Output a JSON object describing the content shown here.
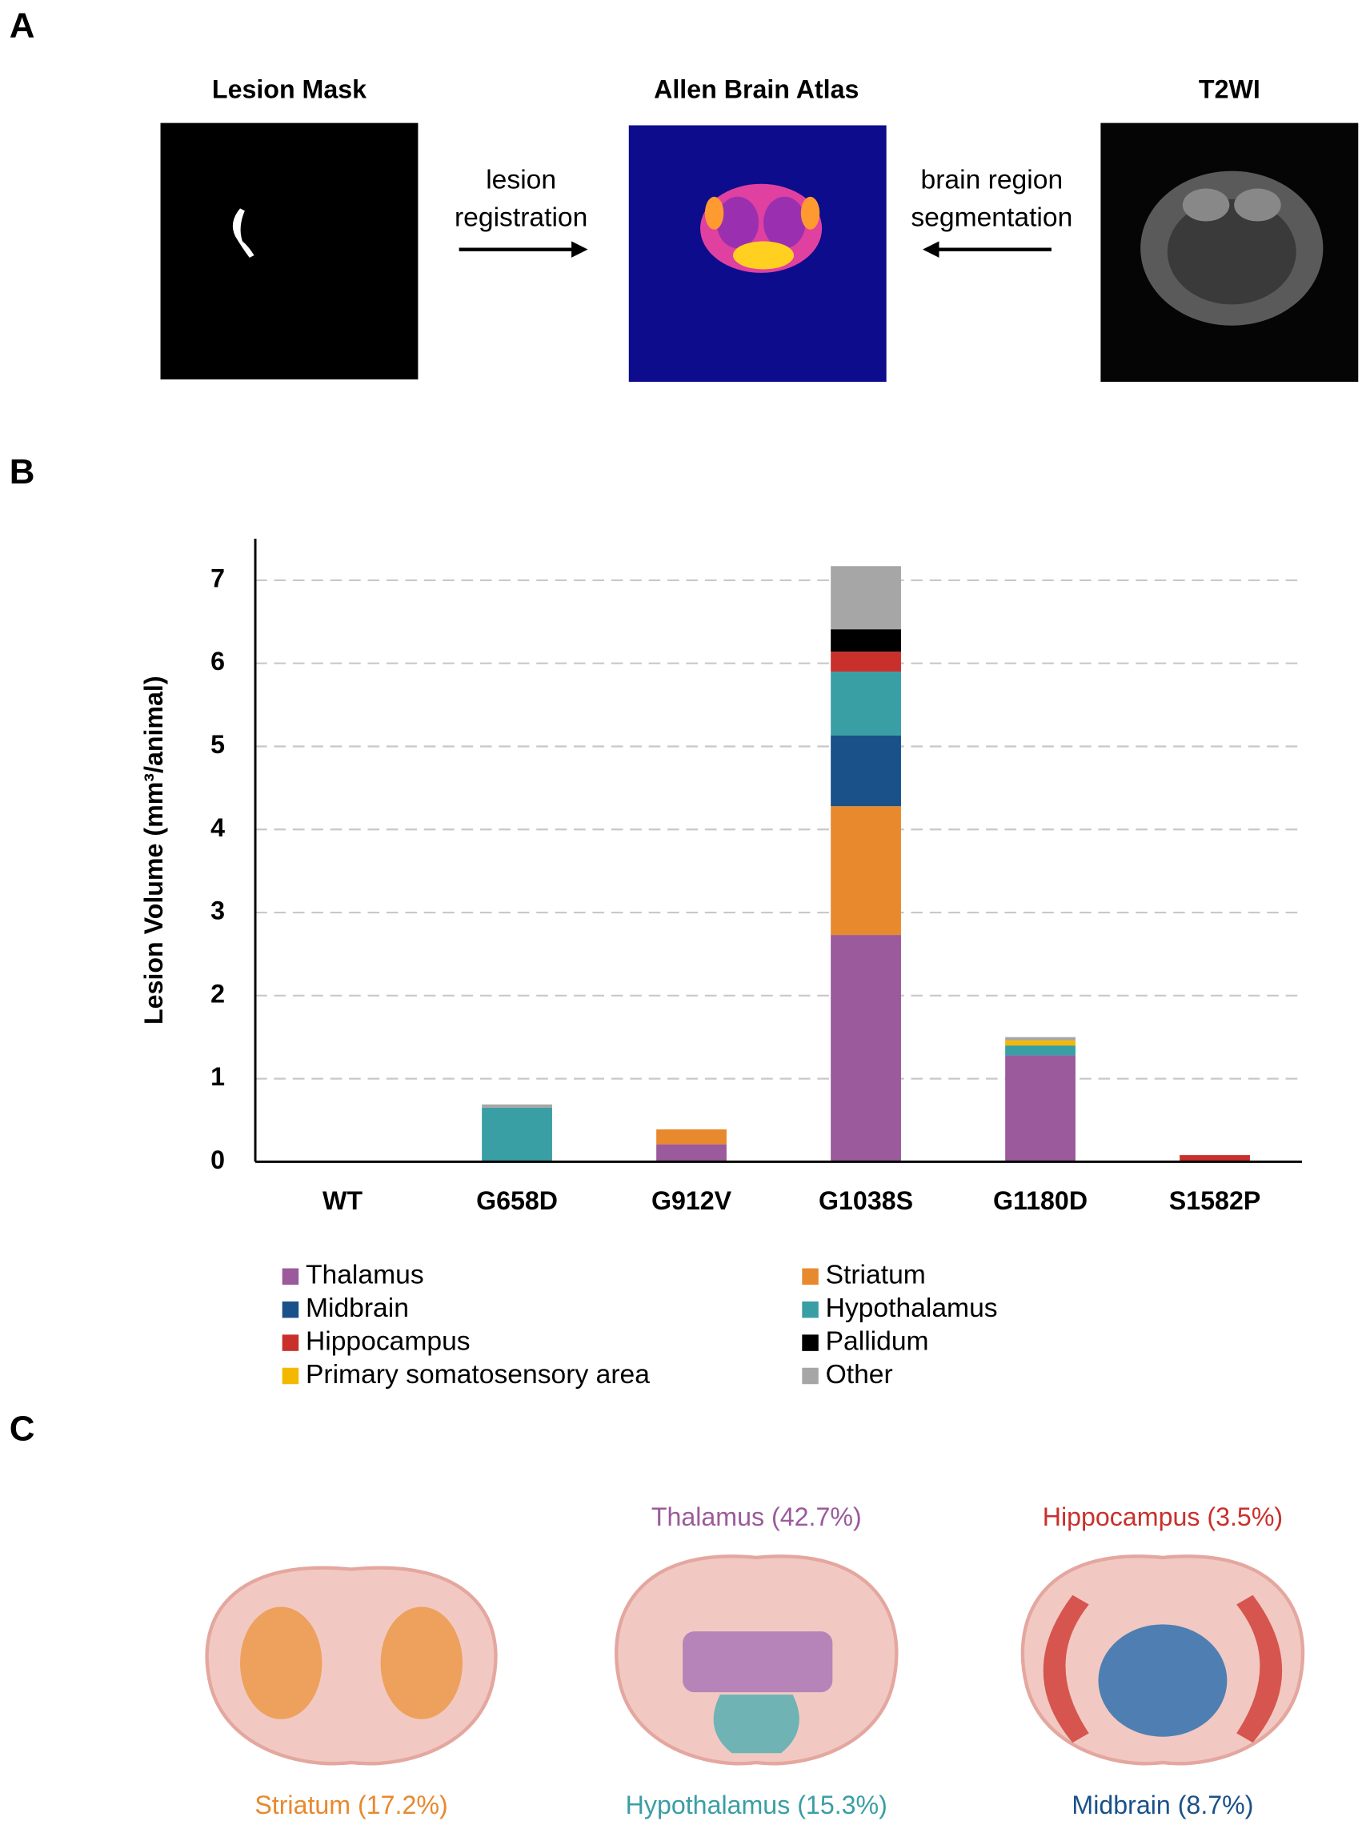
{
  "panel_labels": [
    "A",
    "B",
    "C"
  ],
  "panel_a": {
    "images": [
      {
        "title": "Lesion Mask"
      },
      {
        "title": "Allen Brain Atlas"
      },
      {
        "title": "T2WI"
      }
    ],
    "arrows": [
      {
        "lines": [
          "lesion",
          "registration"
        ]
      },
      {
        "lines": [
          "brain region",
          "segmentation"
        ]
      }
    ]
  },
  "chart_data": {
    "type": "stacked-bar",
    "y_label": "Lesion Volume (mm³/animal)",
    "categories": [
      "WT",
      "G658D",
      "G912V",
      "G1038S",
      "G1180D",
      "S1582P"
    ],
    "series": [
      {
        "name": "Thalamus",
        "color": "#9b5a9b",
        "values": [
          0,
          0,
          0.21,
          2.73,
          1.28,
          0
        ]
      },
      {
        "name": "Striatum",
        "color": "#e8892e",
        "values": [
          0,
          0,
          0.18,
          1.55,
          0,
          0
        ]
      },
      {
        "name": "Midbrain",
        "color": "#1a5189",
        "values": [
          0,
          0,
          0,
          0.85,
          0,
          0
        ]
      },
      {
        "name": "Hypothalamus",
        "color": "#3a9ea5",
        "values": [
          0,
          0.65,
          0,
          0.77,
          0.12,
          0
        ]
      },
      {
        "name": "Hippocampus",
        "color": "#c9302c",
        "values": [
          0,
          0,
          0,
          0.24,
          0,
          0.08
        ]
      },
      {
        "name": "Pallidum",
        "color": "#000000",
        "values": [
          0,
          0,
          0,
          0.27,
          0,
          0
        ]
      },
      {
        "name": "Primary somatosensory area",
        "color": "#f5b800",
        "values": [
          0,
          0,
          0,
          0,
          0.06,
          0
        ]
      },
      {
        "name": "Other",
        "color": "#a6a6a6",
        "values": [
          0,
          0.04,
          0,
          0.76,
          0.04,
          0
        ]
      }
    ],
    "ylim": [
      0,
      7.5
    ],
    "yticks": [
      0,
      1,
      2,
      3,
      4,
      5,
      6,
      7
    ],
    "grid": true,
    "legend_columns": 2
  },
  "panel_c": {
    "labels": [
      {
        "text": "Striatum (17.2%)",
        "color": "#e8892e"
      },
      {
        "text": "Thalamus (42.7%)",
        "color": "#9b5a9b"
      },
      {
        "text": "Hypothalamus (15.3%)",
        "color": "#3a9ea5"
      },
      {
        "text": "Hippocampus (3.5%)",
        "color": "#c9302c"
      },
      {
        "text": "Midbrain (8.7%)",
        "color": "#1a5189"
      }
    ]
  }
}
